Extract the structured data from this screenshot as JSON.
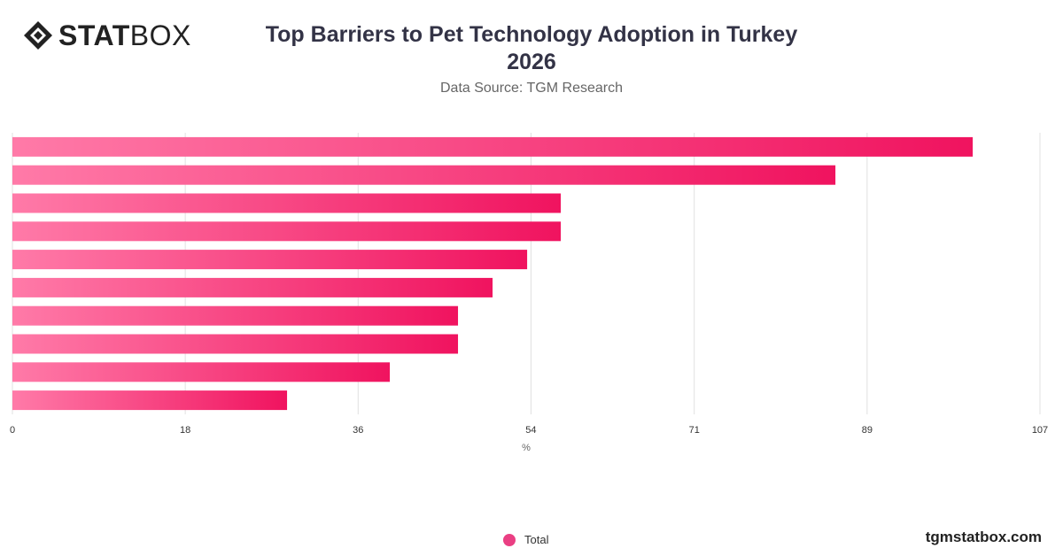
{
  "header": {
    "logo_bold": "STAT",
    "logo_light": "BOX",
    "title_line1": "Top Barriers to Pet Technology Adoption in Turkey",
    "title_line2": "2026",
    "subtitle": "Data Source: TGM Research"
  },
  "legend": {
    "label": "Total"
  },
  "footer": {
    "watermark": "tgmstatbox.com"
  },
  "colors": {
    "bar_start": "#ff7aa8",
    "bar_end": "#f0135f",
    "grid": "#e0e0e0",
    "legend_dot": "#ea3f83"
  },
  "chart_data": {
    "type": "bar",
    "orientation": "horizontal",
    "title": "Top Barriers to Pet Technology Adoption in Turkey 2026",
    "subtitle": "Data Source: TGM Research",
    "xlabel": "%",
    "xlim": [
      0,
      107
    ],
    "ticks": [
      0,
      18,
      36,
      54,
      71,
      89,
      107
    ],
    "grid": true,
    "legend_position": "bottom-center",
    "series": [
      {
        "name": "Total",
        "values": [
          100,
          85.7,
          57.1,
          57.1,
          53.6,
          50,
          46.4,
          46.4,
          39.3,
          28.6
        ]
      }
    ]
  }
}
